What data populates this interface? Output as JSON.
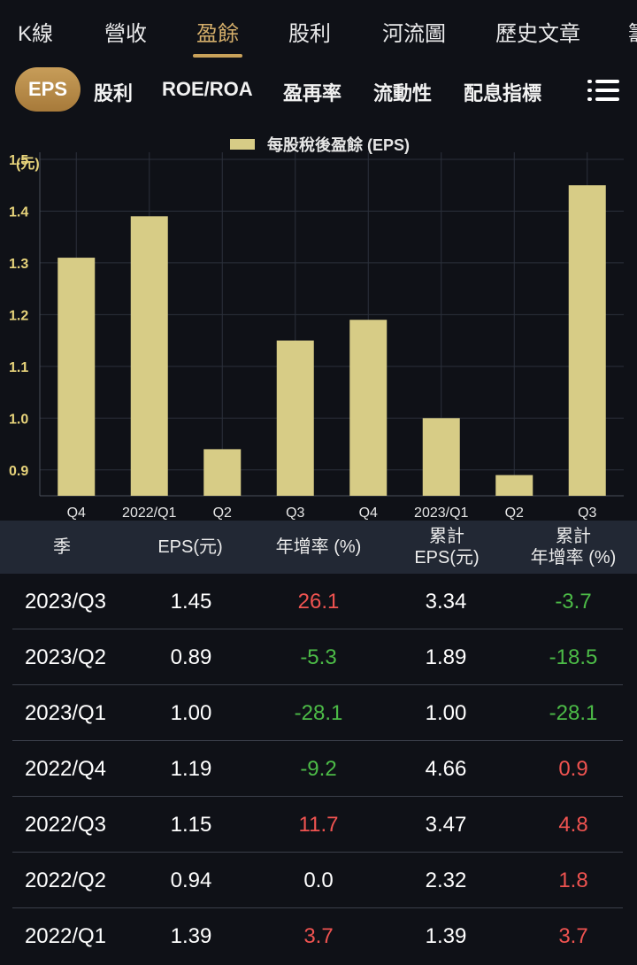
{
  "top_tabs": [
    {
      "label": "K線"
    },
    {
      "label": "營收"
    },
    {
      "label": "盈餘",
      "active": true
    },
    {
      "label": "股利"
    },
    {
      "label": "河流圖"
    },
    {
      "label": "歷史文章"
    },
    {
      "label": "籌"
    }
  ],
  "sub_tabs": [
    {
      "label": "EPS",
      "active": true
    },
    {
      "label": "股利"
    },
    {
      "label": "ROE/ROA"
    },
    {
      "label": "盈再率"
    },
    {
      "label": "流動性"
    },
    {
      "label": "配息指標"
    }
  ],
  "menu_icon": "list-menu-icon",
  "chart_data": {
    "type": "bar",
    "legend": "每股稅後盈餘 (EPS)",
    "ylabel": "(元)",
    "ylim": [
      0.85,
      1.5
    ],
    "yticks": [
      "1.5",
      "1.4",
      "1.3",
      "1.2",
      "1.1",
      "1.0",
      "0.9"
    ],
    "categories": [
      "Q4",
      "2022/Q1",
      "Q2",
      "Q3",
      "Q4",
      "2023/Q1",
      "Q2",
      "Q3"
    ],
    "values": [
      1.31,
      1.39,
      0.94,
      1.15,
      1.19,
      1.0,
      0.89,
      1.45
    ],
    "bar_color": "#d7cc86",
    "grid": true
  },
  "table": {
    "headers": {
      "season": "季",
      "eps": "EPS(元)",
      "yoy": "年增率 (%)",
      "cum_eps_1": "累計",
      "cum_eps_2": "EPS(元)",
      "cum_yoy_1": "累計",
      "cum_yoy_2": "年增率 (%)"
    },
    "rows": [
      {
        "season": "2023/Q3",
        "eps": "1.45",
        "yoy": "26.1",
        "cum_eps": "3.34",
        "cum_yoy": "-3.7"
      },
      {
        "season": "2023/Q2",
        "eps": "0.89",
        "yoy": "-5.3",
        "cum_eps": "1.89",
        "cum_yoy": "-18.5"
      },
      {
        "season": "2023/Q1",
        "eps": "1.00",
        "yoy": "-28.1",
        "cum_eps": "1.00",
        "cum_yoy": "-28.1"
      },
      {
        "season": "2022/Q4",
        "eps": "1.19",
        "yoy": "-9.2",
        "cum_eps": "4.66",
        "cum_yoy": "0.9"
      },
      {
        "season": "2022/Q3",
        "eps": "1.15",
        "yoy": "11.7",
        "cum_eps": "3.47",
        "cum_yoy": "4.8"
      },
      {
        "season": "2022/Q2",
        "eps": "0.94",
        "yoy": "0.0",
        "cum_eps": "2.32",
        "cum_yoy": "1.8"
      },
      {
        "season": "2022/Q1",
        "eps": "1.39",
        "yoy": "3.7",
        "cum_eps": "1.39",
        "cum_yoy": "3.7"
      }
    ]
  },
  "colors": {
    "accent": "#c9a25a",
    "positive": "#ef5350",
    "negative": "#4cbb47"
  }
}
